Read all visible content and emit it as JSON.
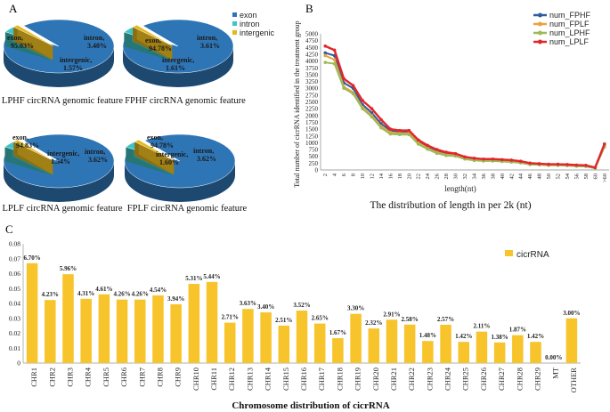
{
  "panels": {
    "a_letter": "A",
    "b_letter": "B",
    "c_letter": "C"
  },
  "chart_data": [
    {
      "type": "pie",
      "id": "LPHF",
      "title": "LPHF circRNA genomic feature",
      "legend": [
        "exon",
        "intron",
        "intergenic"
      ],
      "colors": [
        "#2E75B6",
        "#3FC4C4",
        "#E6B81E"
      ],
      "slices": [
        {
          "name": "exon",
          "label": "exon,",
          "value": 95.03,
          "pct_label": "95.03%"
        },
        {
          "name": "intron",
          "label": "intron,",
          "value": 3.4,
          "pct_label": "3.40%"
        },
        {
          "name": "intergenic",
          "label": "intergenic,",
          "value": 1.57,
          "pct_label": "1.57%"
        }
      ]
    },
    {
      "type": "pie",
      "id": "FPHF",
      "title": "FPHF circRNA genomic feature",
      "slices": [
        {
          "name": "exon",
          "label": "exon,",
          "value": 94.78,
          "pct_label": "94.78%"
        },
        {
          "name": "intron",
          "label": "intron,",
          "value": 3.61,
          "pct_label": "3.61%"
        },
        {
          "name": "intergenic",
          "label": "intergenic,",
          "value": 1.61,
          "pct_label": "1.61%"
        }
      ]
    },
    {
      "type": "pie",
      "id": "LPLF",
      "title": "LPLF circRNA genomic feature",
      "slices": [
        {
          "name": "exon",
          "label": "exon,",
          "value": 94.83,
          "pct_label": "94.83%"
        },
        {
          "name": "intron",
          "label": "intron,",
          "value": 3.62,
          "pct_label": "3.62%"
        },
        {
          "name": "intergenic",
          "label": "intergenic,",
          "value": 1.54,
          "pct_label": "1.54%"
        }
      ]
    },
    {
      "type": "pie",
      "id": "FPLF",
      "title": "FPLF circRNA genomic feature",
      "slices": [
        {
          "name": "exon",
          "label": "exon,",
          "value": 94.78,
          "pct_label": "94.78%"
        },
        {
          "name": "intron",
          "label": "intron,",
          "value": 3.62,
          "pct_label": "3.62%"
        },
        {
          "name": "intergenic",
          "label": "intergenic,",
          "value": 1.6,
          "pct_label": "1.60%"
        }
      ]
    },
    {
      "type": "line",
      "id": "length",
      "title": "The distribution of length in per 2k (nt)",
      "xlabel": "length(nt)",
      "ylabel": "Total number of cicrRNA identified in the treatment group",
      "ylim": [
        0,
        5000
      ],
      "yticks": [
        "0",
        "250",
        "500",
        "750",
        "1000",
        "1250",
        "1500",
        "1750",
        "2000",
        "2250",
        "2500",
        "2750",
        "3000",
        "3250",
        "3500",
        "3750",
        "4000",
        "4250",
        "4500",
        "4750",
        "5000"
      ],
      "x": [
        "2",
        "4",
        "6",
        "8",
        "10",
        "12",
        "14",
        "16",
        "18",
        "20",
        "22",
        "24",
        "26",
        "28",
        "30",
        "32",
        "34",
        "36",
        "38",
        "40",
        "42",
        "44",
        "46",
        "48",
        "50",
        "52",
        "54",
        "56",
        "58",
        "60",
        ">60"
      ],
      "series": [
        {
          "name": "num_FPHF",
          "color": "#2E5C9E",
          "values": [
            4300,
            4200,
            3200,
            3000,
            2400,
            2100,
            1700,
            1450,
            1400,
            1400,
            1050,
            850,
            700,
            600,
            580,
            450,
            400,
            380,
            380,
            360,
            340,
            300,
            230,
            220,
            200,
            200,
            190,
            170,
            160,
            80,
            950
          ]
        },
        {
          "name": "num_FPLF",
          "color": "#E8A33C",
          "values": [
            4200,
            4050,
            3050,
            2850,
            2300,
            2000,
            1600,
            1380,
            1350,
            1350,
            1000,
            800,
            650,
            560,
            540,
            420,
            370,
            350,
            350,
            330,
            310,
            280,
            210,
            200,
            180,
            180,
            170,
            150,
            140,
            70,
            900
          ]
        },
        {
          "name": "num_LPHF",
          "color": "#9BBB59",
          "values": [
            3950,
            3900,
            3000,
            2800,
            2250,
            1950,
            1550,
            1320,
            1300,
            1300,
            950,
            760,
            610,
            530,
            510,
            400,
            350,
            330,
            330,
            310,
            290,
            260,
            200,
            190,
            170,
            170,
            160,
            140,
            130,
            60,
            850
          ]
        },
        {
          "name": "num_LPLF",
          "color": "#E3262A",
          "values": [
            4550,
            4400,
            3350,
            3100,
            2550,
            2250,
            1850,
            1500,
            1450,
            1450,
            1100,
            900,
            750,
            650,
            600,
            480,
            430,
            400,
            400,
            380,
            360,
            320,
            250,
            230,
            210,
            210,
            200,
            180,
            170,
            90,
            950
          ]
        }
      ]
    },
    {
      "type": "bar",
      "id": "chromosome",
      "title": "Chromosome distribution of cicrRNA",
      "legend": "cicrRNA",
      "color": "#F7C42C",
      "ylim": [
        0,
        0.08
      ],
      "yticks": [
        "0",
        "0.01",
        "0.02",
        "0.03",
        "0.04",
        "0.05",
        "0.06",
        "0.07",
        "0.08"
      ],
      "categories": [
        "CHR1",
        "CHR2",
        "CHR3",
        "CHR4",
        "CHR5",
        "CHR6",
        "CHR7",
        "CHR8",
        "CHR9",
        "CHR10",
        "CHR11",
        "CHR12",
        "CHR13",
        "CHR14",
        "CHR15",
        "CHR16",
        "CHR17",
        "CHR18",
        "CHR19",
        "CHR20",
        "CHR21",
        "CHR22",
        "CHR23",
        "CHR24",
        "CHR25",
        "CHR26",
        "CHR27",
        "CHR28",
        "CHR29",
        "MT",
        "OTHER"
      ],
      "values": [
        0.067,
        0.0423,
        0.0596,
        0.0431,
        0.0461,
        0.0426,
        0.0426,
        0.0454,
        0.0394,
        0.0531,
        0.0544,
        0.0271,
        0.0363,
        0.034,
        0.0251,
        0.0352,
        0.0265,
        0.0167,
        0.033,
        0.0232,
        0.0291,
        0.0258,
        0.0148,
        0.0257,
        0.0142,
        0.0211,
        0.0138,
        0.0187,
        0.0142,
        0.0,
        0.03
      ],
      "labels": [
        "6.70%",
        "4.23%",
        "5.96%",
        "4.31%",
        "4.61%",
        "4.26%",
        "4.26%",
        "4.54%",
        "3.94%",
        "5.31%",
        "5.44%",
        "2.71%",
        "3.63%",
        "3.40%",
        "2.51%",
        "3.52%",
        "2.65%",
        "1.67%",
        "3.30%",
        "2.32%",
        "2.91%",
        "2.58%",
        "1.48%",
        "2.57%",
        "1.42%",
        "2.11%",
        "1.38%",
        "1.87%",
        "1.42%",
        "0.00%",
        "3.00%"
      ]
    }
  ]
}
